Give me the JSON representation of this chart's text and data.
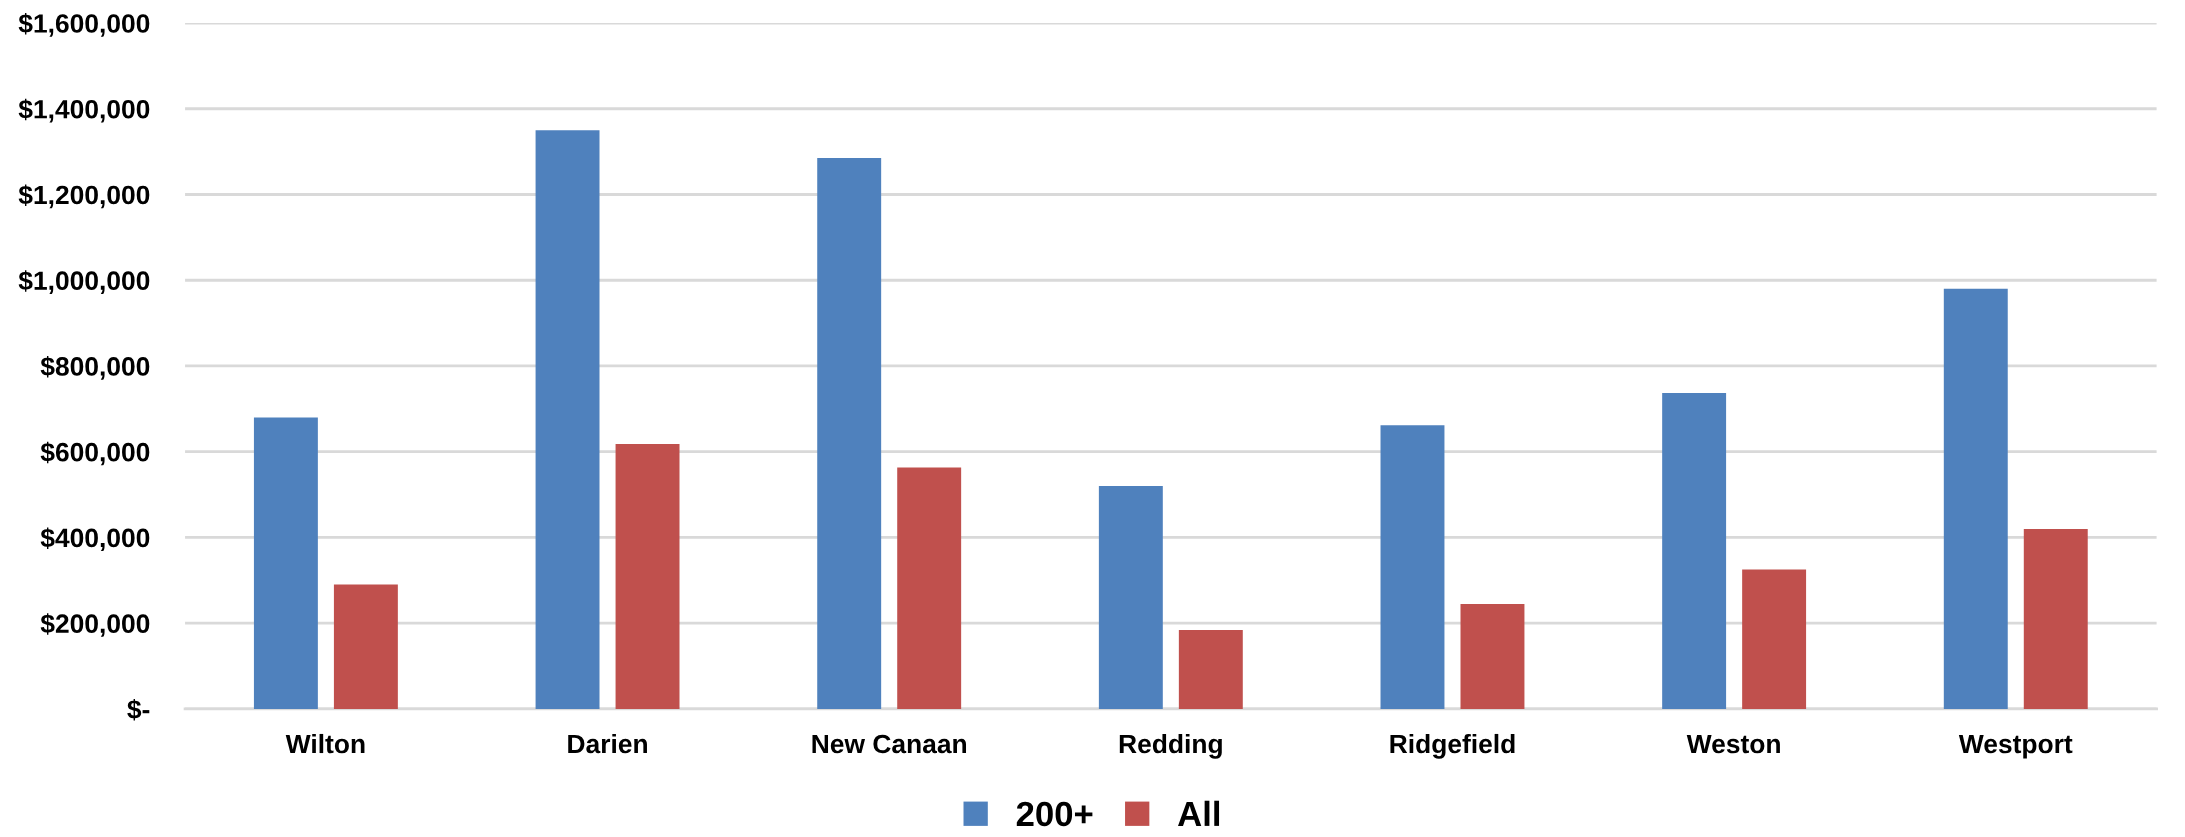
{
  "chart_data": {
    "type": "bar",
    "categories": [
      "Wilton",
      "Darien",
      "New Canaan",
      "Redding",
      "Ridgefield",
      "Weston",
      "Westport"
    ],
    "series": [
      {
        "name": "200+",
        "color": "#4f81bd",
        "values": [
          680000,
          1350000,
          1285000,
          520000,
          662000,
          737000,
          980000
        ]
      },
      {
        "name": "All",
        "color": "#c0504d",
        "values": [
          290000,
          618000,
          563000,
          184000,
          245000,
          325000,
          420000
        ]
      }
    ],
    "ylim": [
      0,
      1600000
    ],
    "yticks": [
      {
        "value": 0,
        "label": "$-"
      },
      {
        "value": 200000,
        "label": "$200,000"
      },
      {
        "value": 400000,
        "label": "$400,000"
      },
      {
        "value": 600000,
        "label": "$600,000"
      },
      {
        "value": 800000,
        "label": "$800,000"
      },
      {
        "value": 1000000,
        "label": "$1,000,000"
      },
      {
        "value": 1200000,
        "label": "$1,200,000"
      },
      {
        "value": 1400000,
        "label": "$1,400,000"
      },
      {
        "value": 1600000,
        "label": "$1,600,000"
      }
    ],
    "grid": "y",
    "legend": "bottom"
  }
}
